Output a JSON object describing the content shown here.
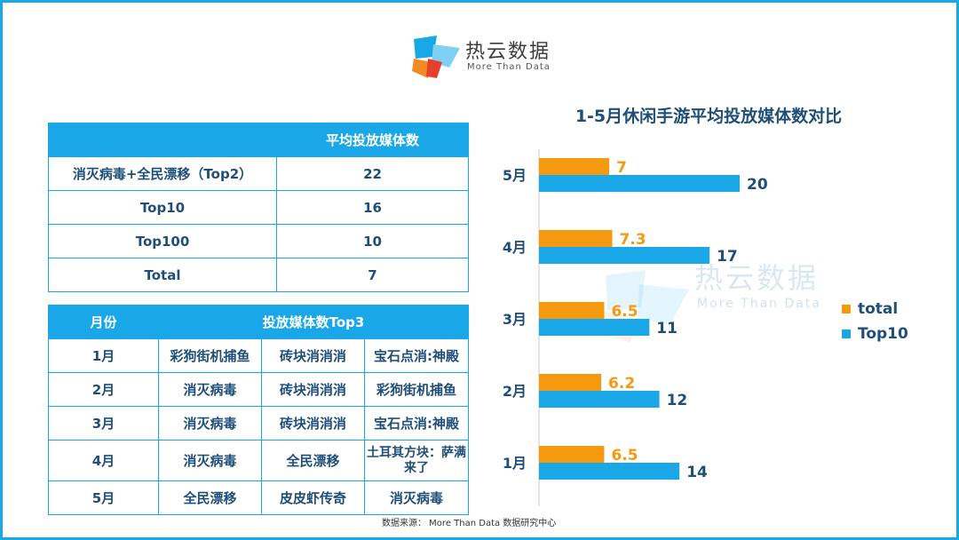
{
  "logo": {
    "name": "热云数据",
    "subtitle": "More Than Data"
  },
  "watermark": {
    "name": "热云数据",
    "subtitle": "More Than Data"
  },
  "table1": {
    "header": [
      "",
      "平均投放媒体数"
    ],
    "rows": [
      [
        "消灭病毒+全民漂移（Top2）",
        "22"
      ],
      [
        "Top10",
        "16"
      ],
      [
        "Top100",
        "10"
      ],
      [
        "Total",
        "7"
      ]
    ]
  },
  "table2": {
    "header": [
      "月份",
      "投放媒体数Top3"
    ],
    "rows": [
      [
        "1月",
        "彩狗街机捕鱼",
        "砖块消消消",
        "宝石点消:神殿"
      ],
      [
        "2月",
        "消灭病毒",
        "砖块消消消",
        "彩狗街机捕鱼"
      ],
      [
        "3月",
        "消灭病毒",
        "砖块消消消",
        "宝石点消:神殿"
      ],
      [
        "4月",
        "消灭病毒",
        "全民漂移",
        "土耳其方块：萨满来了"
      ],
      [
        "5月",
        "全民漂移",
        "皮皮虾传奇",
        "消灭病毒"
      ]
    ]
  },
  "source": "数据来源：  More Than Data 数据研究中心",
  "colors": {
    "accent": "#1aa7e8",
    "total": "#f5990f",
    "top10": "#1aa7e8",
    "text_dark": "#1f4e79"
  },
  "chart_data": {
    "type": "bar",
    "orientation": "horizontal",
    "title": "1-5月休闲手游平均投放媒体数对比",
    "categories": [
      "5月",
      "4月",
      "3月",
      "2月",
      "1月"
    ],
    "series": [
      {
        "name": "total",
        "values": [
          7,
          7.3,
          6.5,
          6.2,
          6.5
        ],
        "labels": [
          "7",
          "7.3",
          "6.5",
          "6.2",
          "6.5"
        ]
      },
      {
        "name": "Top10",
        "values": [
          20,
          17,
          11,
          12,
          14
        ],
        "labels": [
          "20",
          "17",
          "11",
          "12",
          "14"
        ]
      }
    ],
    "xlim": [
      0,
      20
    ],
    "legend_position": "right",
    "grid": false
  }
}
